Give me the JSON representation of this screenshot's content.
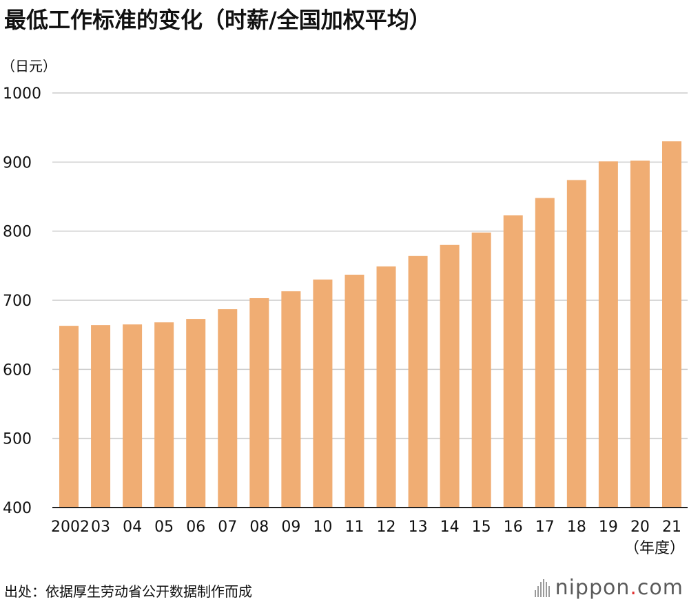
{
  "header": {
    "title": "最低工作标准的变化（时薪/全国加权平均）",
    "unit": "（日元）"
  },
  "footer": {
    "source": "出处：依据厚生劳动省公开数据制作而成",
    "brand_main": "nippon",
    "brand_dot": ".",
    "brand_suffix": "com",
    "brand_dot_color": "#e03030"
  },
  "chart_data": {
    "type": "bar",
    "title": "最低工作标准的变化（时薪/全国加权平均）",
    "ylabel": "（日元）",
    "xlabel": "（年度）",
    "ylim": [
      400,
      1000
    ],
    "yticks": [
      400,
      500,
      600,
      700,
      800,
      900,
      1000
    ],
    "grid": true,
    "bar_color": "#f0ad73",
    "grid_color": "#cccccc",
    "categories": [
      "2002",
      "03",
      "04",
      "05",
      "06",
      "07",
      "08",
      "09",
      "10",
      "11",
      "12",
      "13",
      "14",
      "15",
      "16",
      "17",
      "18",
      "19",
      "20",
      "21"
    ],
    "values": [
      663,
      664,
      665,
      668,
      673,
      687,
      703,
      713,
      730,
      737,
      749,
      764,
      780,
      798,
      823,
      848,
      874,
      901,
      902,
      930
    ]
  }
}
